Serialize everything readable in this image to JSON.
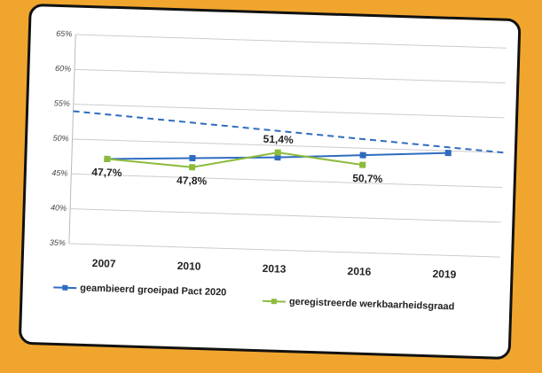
{
  "chart_data": {
    "type": "line",
    "categories": [
      "2007",
      "2010",
      "2013",
      "2016",
      "2019"
    ],
    "series": [
      {
        "name": "geambieerd groeipad Pact 2020",
        "color": "#2f6cc0",
        "values": [
          47.3,
          47.8,
          48.3,
          49.0,
          49.7
        ]
      },
      {
        "name": "geregistreerde werkbaarheidsgraad",
        "color": "#8dbb3c",
        "values": [
          47.3,
          46.5,
          49.0,
          47.6,
          null
        ]
      }
    ],
    "annotations": [
      "47,7%",
      "47,8%",
      "51,4%",
      "50,7%"
    ],
    "reference_line": {
      "start": 54,
      "end": 50,
      "color": "#2f6cc0",
      "dashed": true
    },
    "ylim": [
      35,
      65
    ],
    "yticks": [
      {
        "value": 35,
        "label": "35%"
      },
      {
        "value": 40,
        "label": "40%"
      },
      {
        "value": 45,
        "label": "45%"
      },
      {
        "value": 50,
        "label": "50%"
      },
      {
        "value": 55,
        "label": "55%"
      },
      {
        "value": 60,
        "label": "60%"
      },
      {
        "value": 65,
        "label": "65%"
      }
    ],
    "grid": true,
    "legend": "bottom"
  }
}
